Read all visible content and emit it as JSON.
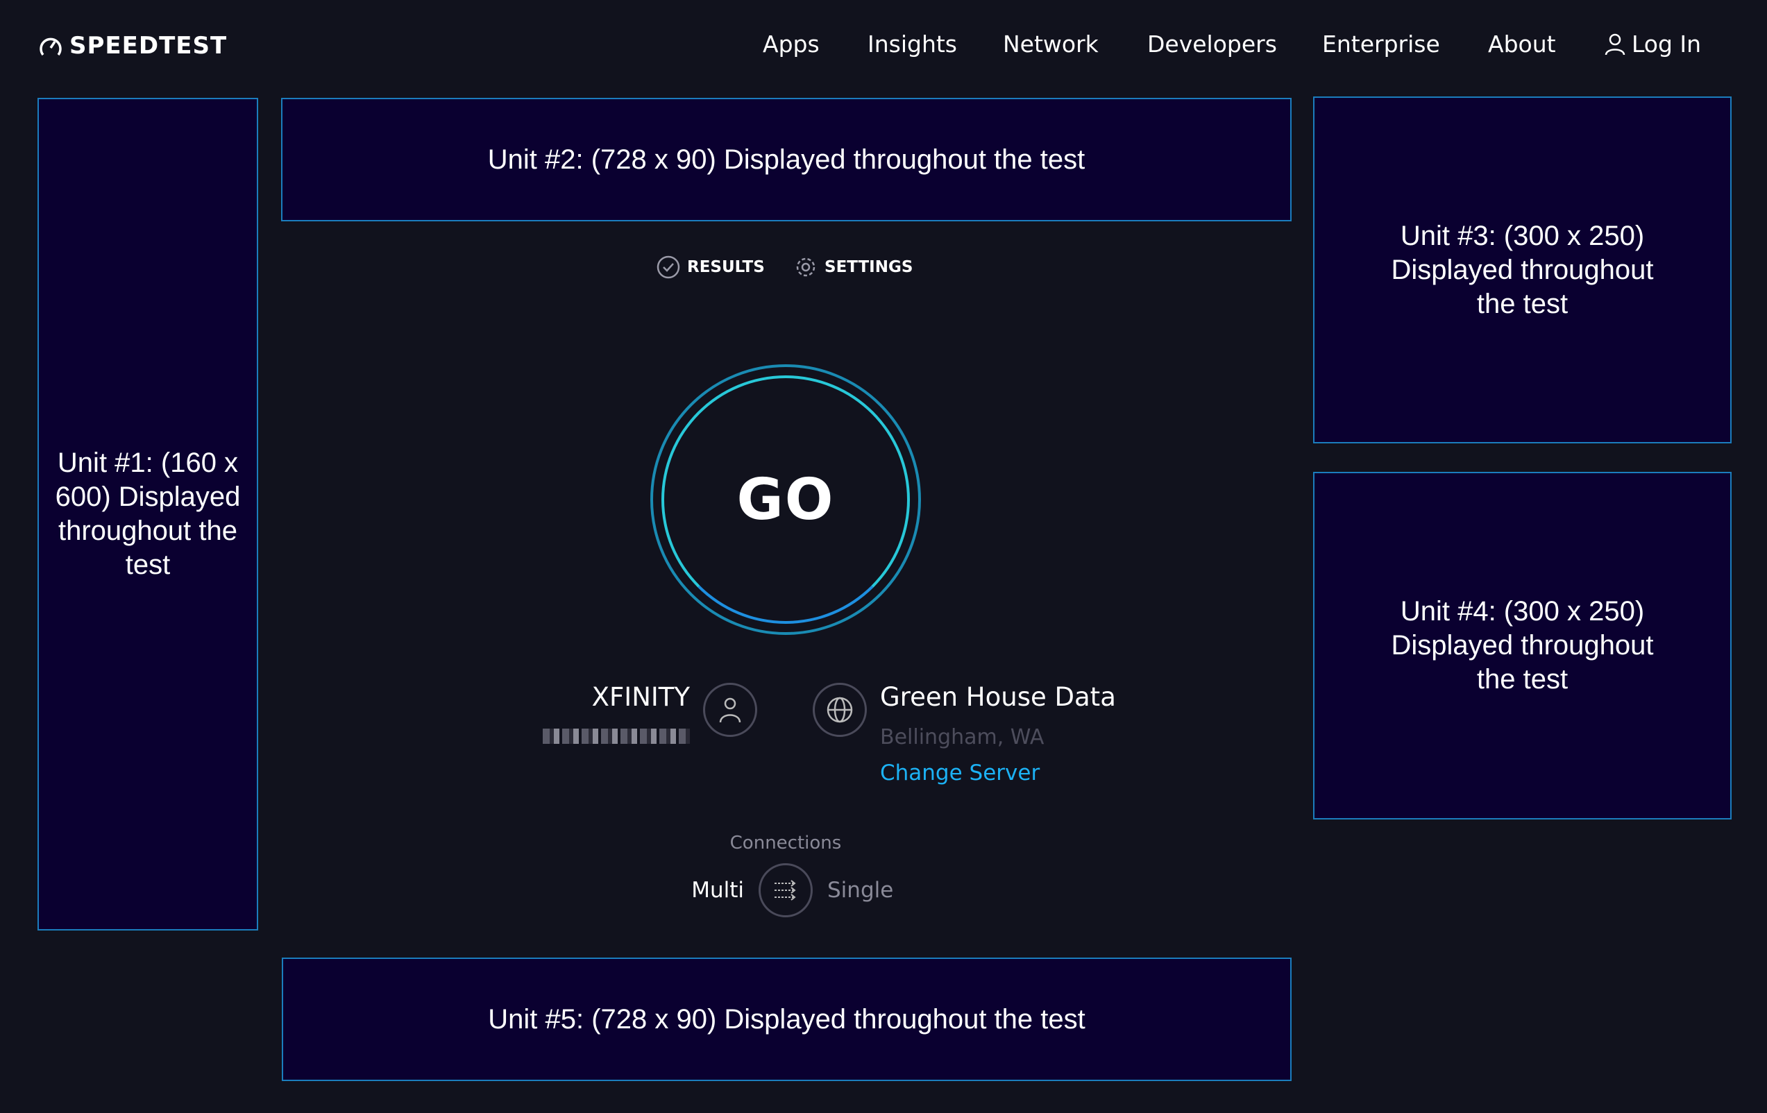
{
  "header": {
    "logo": "SPEEDTEST",
    "nav": [
      "Apps",
      "Insights",
      "Network",
      "Developers",
      "Enterprise",
      "About"
    ],
    "login": "Log In"
  },
  "ads": {
    "unit1": "Unit #1: (160 x 600) Displayed throughout the test",
    "unit2": "Unit #2: (728 x 90) Displayed throughout the test",
    "unit3": "Unit #3: (300 x 250) Displayed throughout the test",
    "unit4": "Unit #4: (300 x 250) Displayed throughout the test",
    "unit5": "Unit #5: (728 x 90) Displayed throughout the test"
  },
  "tabs": {
    "results": "RESULTS",
    "settings": "SETTINGS"
  },
  "go": "GO",
  "isp": {
    "name": "XFINITY",
    "icon": "person-icon"
  },
  "server": {
    "name": "Green House Data",
    "location": "Bellingham, WA",
    "change": "Change Server",
    "icon": "globe-icon"
  },
  "connections": {
    "label": "Connections",
    "multi": "Multi",
    "single": "Single",
    "selected": "Multi"
  },
  "colors": {
    "accent": "#1cb2f5",
    "ad_border": "#1b7dbd",
    "ad_bg": "#0a0030",
    "bg": "#11121d"
  }
}
